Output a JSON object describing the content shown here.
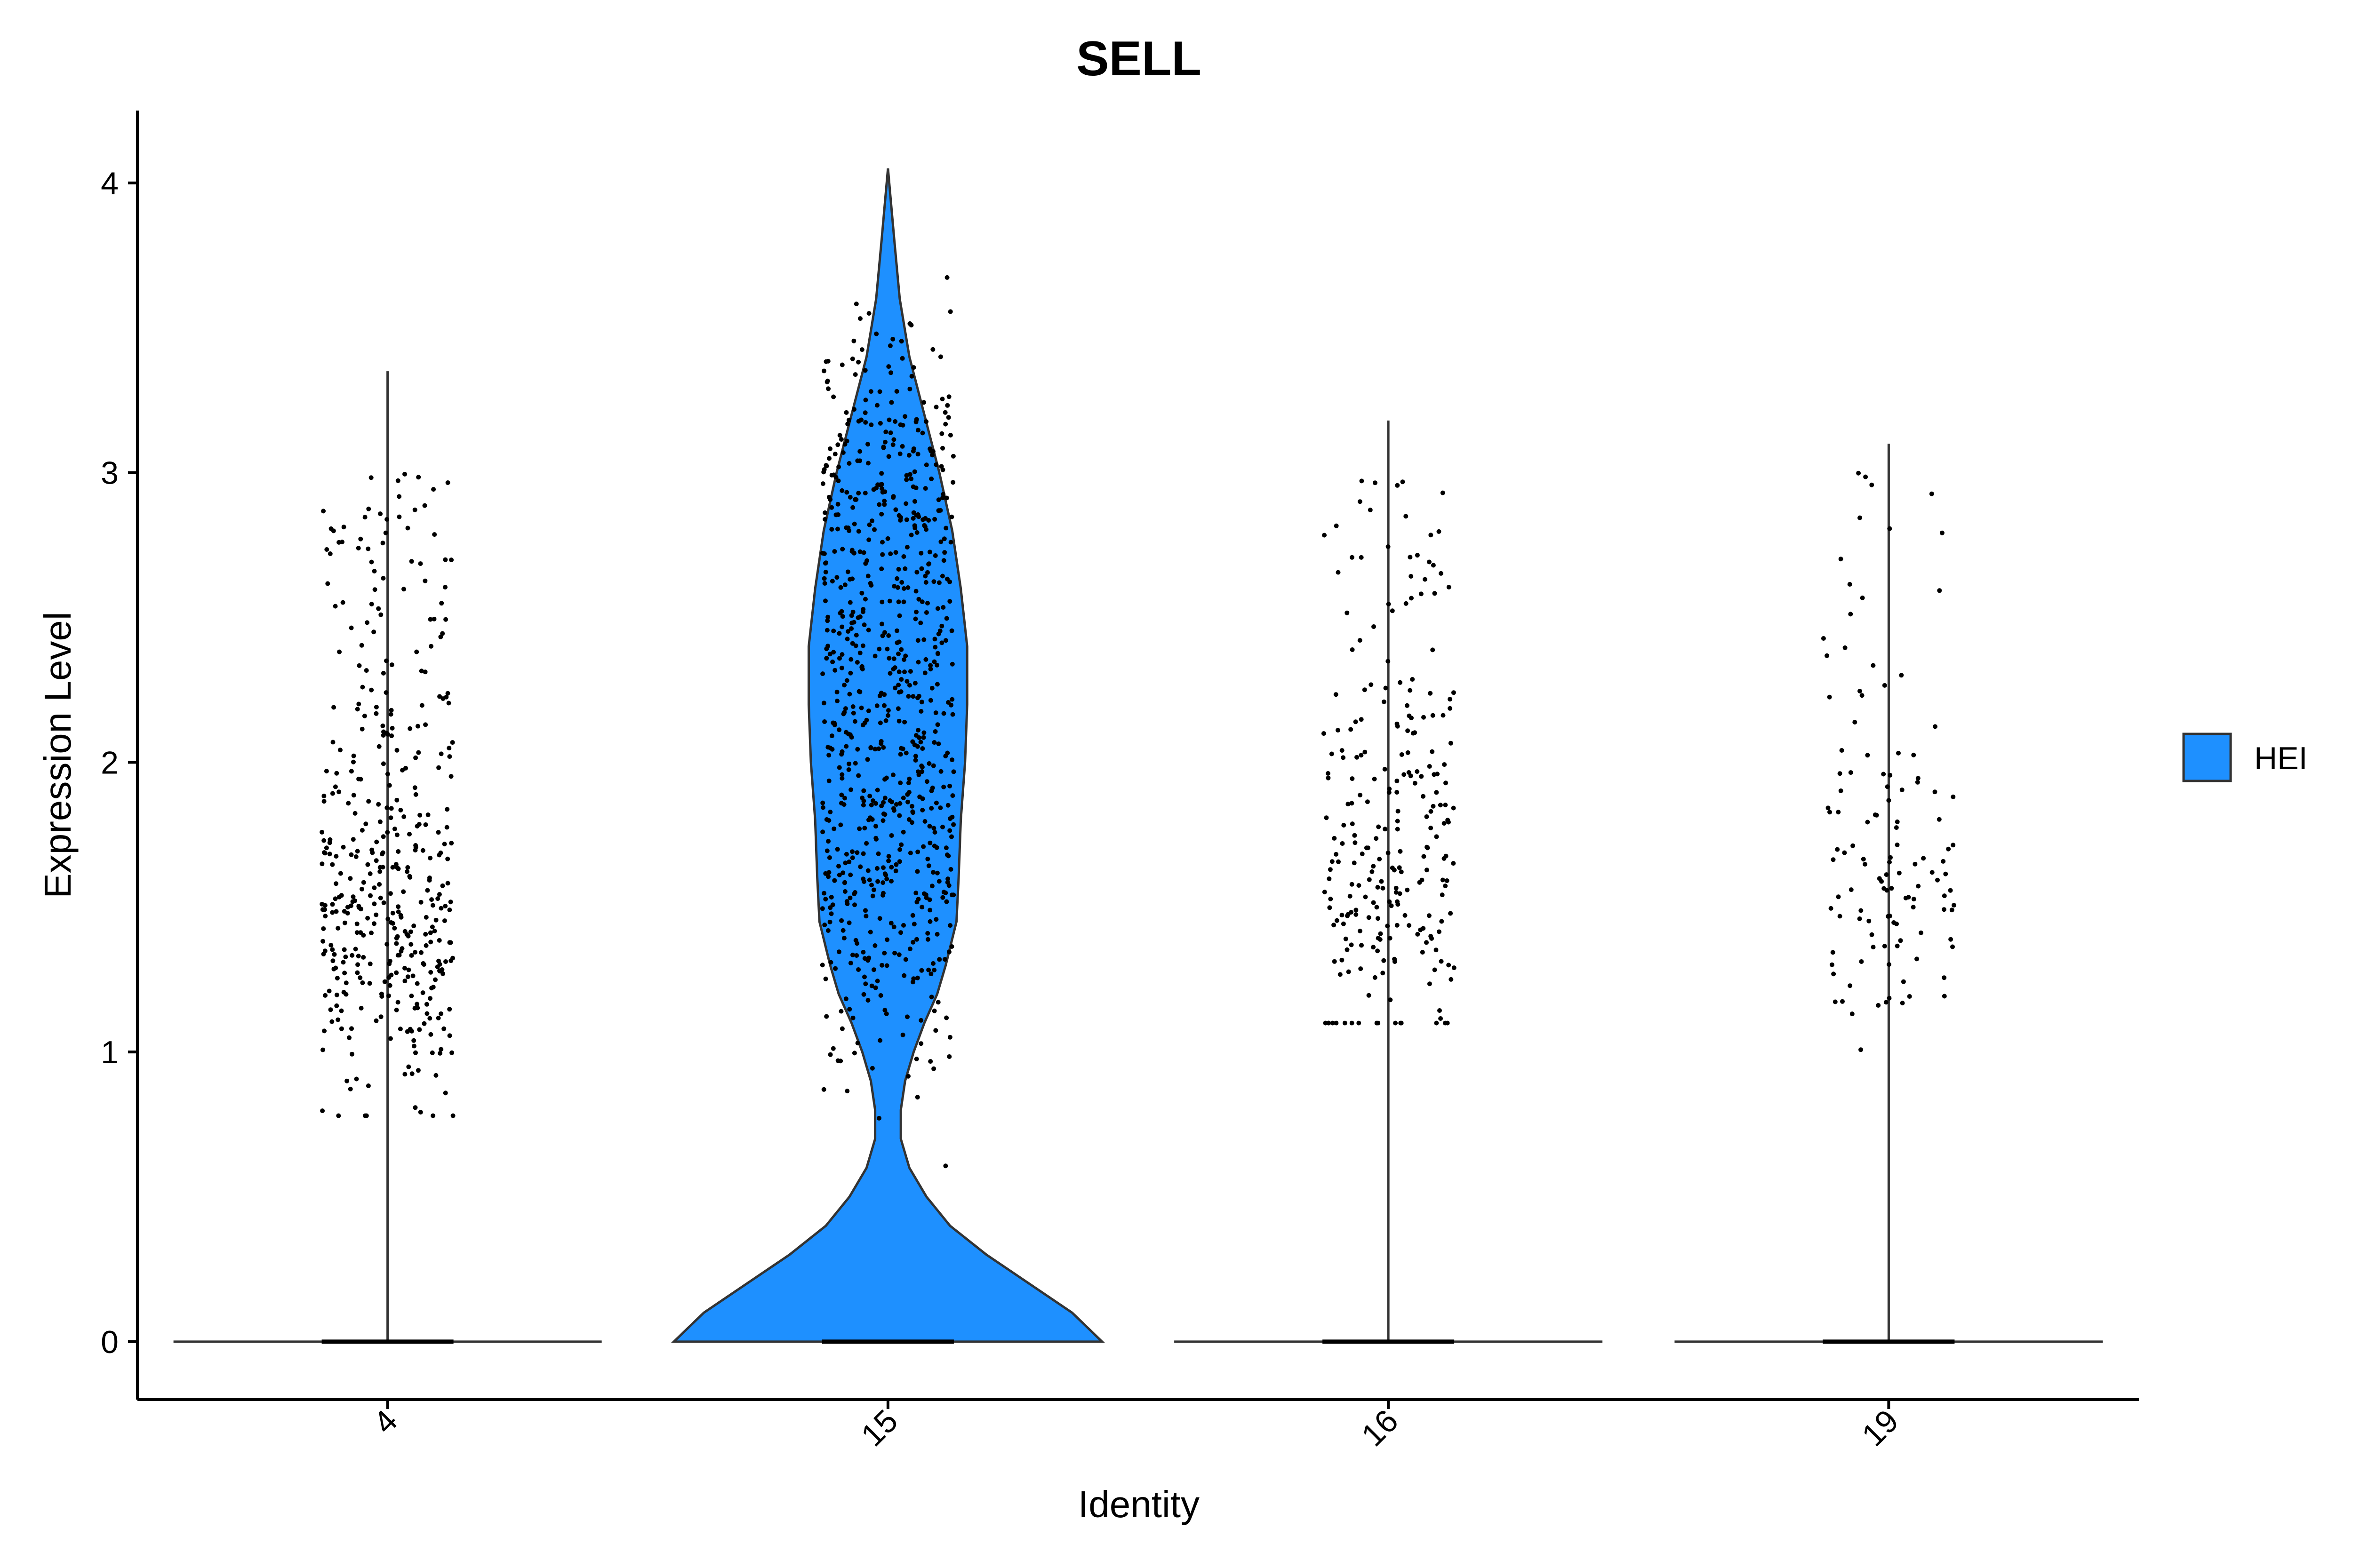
{
  "chart_data": {
    "type": "violin",
    "title": "SELL",
    "xlabel": "Identity",
    "ylabel": "Expression Level",
    "ylim": [
      -0.2,
      4.25
    ],
    "yticks": [
      0,
      1,
      2,
      3,
      4
    ],
    "categories": [
      "4",
      "15",
      "16",
      "19"
    ],
    "legend": {
      "position": "right",
      "entries": [
        {
          "name": "HEI",
          "color": "#1E90FF"
        }
      ]
    },
    "fill_color": "#1E90FF",
    "violins": [
      {
        "category": "4",
        "max": 3.35,
        "filled": false,
        "nonzero_center": 1.45,
        "nonzero_min": 0.78,
        "nonzero_points": 420
      },
      {
        "category": "15",
        "max": 4.05,
        "filled": true,
        "density_profile": [
          [
            0,
            1.0
          ],
          [
            0.1,
            0.86
          ],
          [
            0.2,
            0.66
          ],
          [
            0.3,
            0.46
          ],
          [
            0.4,
            0.29
          ],
          [
            0.5,
            0.18
          ],
          [
            0.6,
            0.1
          ],
          [
            0.7,
            0.06
          ],
          [
            0.8,
            0.06
          ],
          [
            0.9,
            0.08
          ],
          [
            1.0,
            0.12
          ],
          [
            1.1,
            0.17
          ],
          [
            1.2,
            0.23
          ],
          [
            1.3,
            0.27
          ],
          [
            1.45,
            0.32
          ],
          [
            1.6,
            0.33
          ],
          [
            1.8,
            0.34
          ],
          [
            2.0,
            0.36
          ],
          [
            2.2,
            0.37
          ],
          [
            2.4,
            0.37
          ],
          [
            2.6,
            0.34
          ],
          [
            2.8,
            0.3
          ],
          [
            3.0,
            0.24
          ],
          [
            3.2,
            0.17
          ],
          [
            3.4,
            0.1
          ],
          [
            3.6,
            0.055
          ],
          [
            3.8,
            0.03
          ],
          [
            3.95,
            0.012
          ],
          [
            4.05,
            0.0
          ]
        ],
        "nonzero_center": 2.1,
        "nonzero_min": 0.47,
        "nonzero_points": 780
      },
      {
        "category": "16",
        "max": 3.18,
        "filled": false,
        "nonzero_center": 1.6,
        "nonzero_min": 1.1,
        "nonzero_points": 250
      },
      {
        "category": "19",
        "max": 3.1,
        "filled": false,
        "nonzero_center": 1.55,
        "nonzero_min": 0.49,
        "nonzero_points": 120
      }
    ]
  }
}
